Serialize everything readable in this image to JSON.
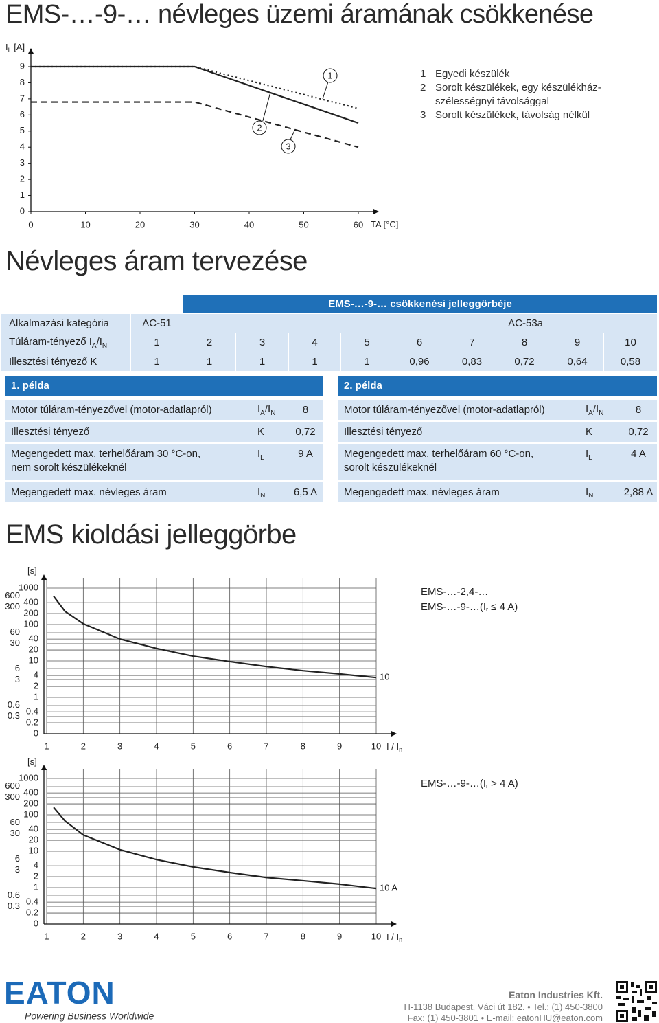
{
  "title": "EMS-…-9-… névleges üzemi áramának csökkenése",
  "chart_data": [
    {
      "type": "line",
      "ylabel": [
        "I",
        {
          "sub": "L"
        },
        " [A]"
      ],
      "xlabel": "TA [°C]",
      "xlim": [
        0,
        60
      ],
      "xticks": [
        0,
        10,
        20,
        30,
        40,
        50,
        60
      ],
      "ylim": [
        0,
        9
      ],
      "yticks": [
        0,
        1,
        2,
        3,
        4,
        5,
        6,
        7,
        8,
        9
      ],
      "grid": false,
      "series": [
        {
          "name": "1",
          "color": "#222222",
          "line_style": "dotted",
          "x": [
            0,
            30,
            60
          ],
          "values": [
            9,
            9,
            6.4
          ]
        },
        {
          "name": "2",
          "color": "#222222",
          "line_style": "solid",
          "x": [
            0,
            30,
            60
          ],
          "values": [
            9,
            9,
            5.5
          ]
        },
        {
          "name": "3",
          "color": "#222222",
          "line_style": "dashed",
          "x": [
            0,
            30,
            60
          ],
          "values": [
            6.8,
            6.8,
            4
          ]
        }
      ],
      "legend_texts": [
        "Egyedi készülék",
        [
          "Sorolt készülékek, egy készülékház-",
          "szélességnyi távolsággal"
        ],
        "Sorolt készülékek, távolság nélkül"
      ]
    },
    {
      "type": "line",
      "ylabel": "[s]",
      "xlabel": [
        "I / I",
        {
          "sub": "n"
        }
      ],
      "xlim": [
        1,
        10
      ],
      "xticks": [
        1,
        2,
        3,
        4,
        5,
        6,
        7,
        8,
        9,
        10
      ],
      "ylim": [
        0.1,
        1000
      ],
      "log_y": true,
      "yticks": [
        1000,
        400,
        200,
        100,
        40,
        20,
        10,
        4,
        2,
        1,
        0.4,
        0.2,
        {
          "value": 0.1,
          "label": "0"
        }
      ],
      "y2lim": [
        0.1,
        1000
      ],
      "y2ticks": [
        600,
        300,
        60,
        30,
        6,
        3,
        0.6,
        0.3
      ],
      "grid": true,
      "series": [
        {
          "name": "10",
          "color": "#222222",
          "line_style": "solid",
          "x": [
            1.19,
            1.5,
            2,
            3,
            4,
            5,
            6,
            7,
            8,
            9,
            10
          ],
          "values": [
            600,
            230,
            105,
            40,
            22,
            13.5,
            9.6,
            7,
            5.4,
            4.4,
            3.5
          ]
        }
      ],
      "annotations": [
        "EMS-…-2,4-…",
        [
          "EMS-…-9-…(I",
          {
            "sub": "r"
          },
          " ≤ 4 A)"
        ]
      ]
    },
    {
      "type": "line",
      "ylabel": "[s]",
      "xlabel": [
        "I / I",
        {
          "sub": "n"
        }
      ],
      "xlim": [
        1,
        10
      ],
      "xticks": [
        1,
        2,
        3,
        4,
        5,
        6,
        7,
        8,
        9,
        10
      ],
      "ylim": [
        0.1,
        1000
      ],
      "log_y": true,
      "yticks": [
        1000,
        400,
        200,
        100,
        40,
        20,
        10,
        4,
        2,
        1,
        0.4,
        0.2,
        {
          "value": 0.1,
          "label": "0"
        }
      ],
      "y2lim": [
        0.1,
        1000
      ],
      "y2ticks": [
        600,
        300,
        60,
        30,
        6,
        3,
        0.6,
        0.3
      ],
      "grid": true,
      "series": [
        {
          "name": "10 A",
          "color": "#222222",
          "line_style": "solid",
          "x": [
            1.19,
            1.5,
            2,
            3,
            4,
            5,
            6,
            7,
            8,
            9,
            10
          ],
          "values": [
            160,
            68,
            28,
            11,
            5.9,
            3.7,
            2.6,
            1.9,
            1.55,
            1.25,
            0.95
          ]
        }
      ],
      "annotations": [
        [
          "EMS-…-9-…(I",
          {
            "sub": "r"
          },
          " > 4 A)"
        ]
      ]
    }
  ],
  "section_planning": "Névleges áram tervezése",
  "table": {
    "header": "EMS-…-9-… csökkenési jelleggörbéje",
    "rows": [
      {
        "label": "Alkalmazási kategória",
        "cells": [
          "AC-51",
          "AC-53a"
        ]
      },
      {
        "label": [
          "Túláram-tényező I",
          {
            "sub": "A"
          },
          "/I",
          {
            "sub": "N"
          }
        ],
        "cells": [
          "1",
          "2",
          "3",
          "4",
          "5",
          "6",
          "7",
          "8",
          "9",
          "10"
        ]
      },
      {
        "label": "Illesztési tényező K",
        "cells": [
          "1",
          "1",
          "1",
          "1",
          "1",
          "0,96",
          "0,83",
          "0,72",
          "0,64",
          "0,58"
        ]
      }
    ]
  },
  "examples": [
    {
      "title": "1. példa",
      "rows": [
        {
          "label": "Motor túláram-tényezővel (motor-adatlapról)",
          "symbol": [
            "I",
            {
              "sub": "A"
            },
            "/I",
            {
              "sub": "N"
            }
          ],
          "value": "8"
        },
        {
          "label": "Illesztési tényező",
          "symbol": "K",
          "value": "0,72"
        },
        {
          "lines": [
            "Megengedett max. terhelőáram 30 °C-on,",
            "nem sorolt készülékeknél"
          ],
          "symbol": [
            "I",
            {
              "sub": "L"
            }
          ],
          "value": "9 A"
        },
        {
          "label": "Megengedett max. névleges áram",
          "symbol": [
            "I",
            {
              "sub": "N"
            }
          ],
          "value": "6,5 A"
        }
      ]
    },
    {
      "title": "2. példa",
      "rows": [
        {
          "label": "Motor túláram-tényezővel (motor-adatlapról)",
          "symbol": [
            "I",
            {
              "sub": "A"
            },
            "/I",
            {
              "sub": "N"
            }
          ],
          "value": "8"
        },
        {
          "label": "Illesztési tényező",
          "symbol": "K",
          "value": "0,72"
        },
        {
          "lines": [
            "Megengedett max. terhelőáram 60 °C-on,",
            "sorolt készülékeknél"
          ],
          "symbol": [
            "I",
            {
              "sub": "L"
            }
          ],
          "value": "4 A"
        },
        {
          "label": "Megengedett max. névleges áram",
          "symbol": [
            "I",
            {
              "sub": "N"
            }
          ],
          "value": "2,88 A"
        }
      ]
    }
  ],
  "section_trip": "EMS kioldási jelleggörbe",
  "footer": {
    "logo": "EATON",
    "tagline": "Powering Business Worldwide",
    "company": "Eaton Industries Kft.",
    "address": "H-1138 Budapest, Váci út 182. • Tel.: (1) 450-3800",
    "contact": "Fax: (1) 450-3801 • E-mail: eatonHU@eaton.com"
  }
}
